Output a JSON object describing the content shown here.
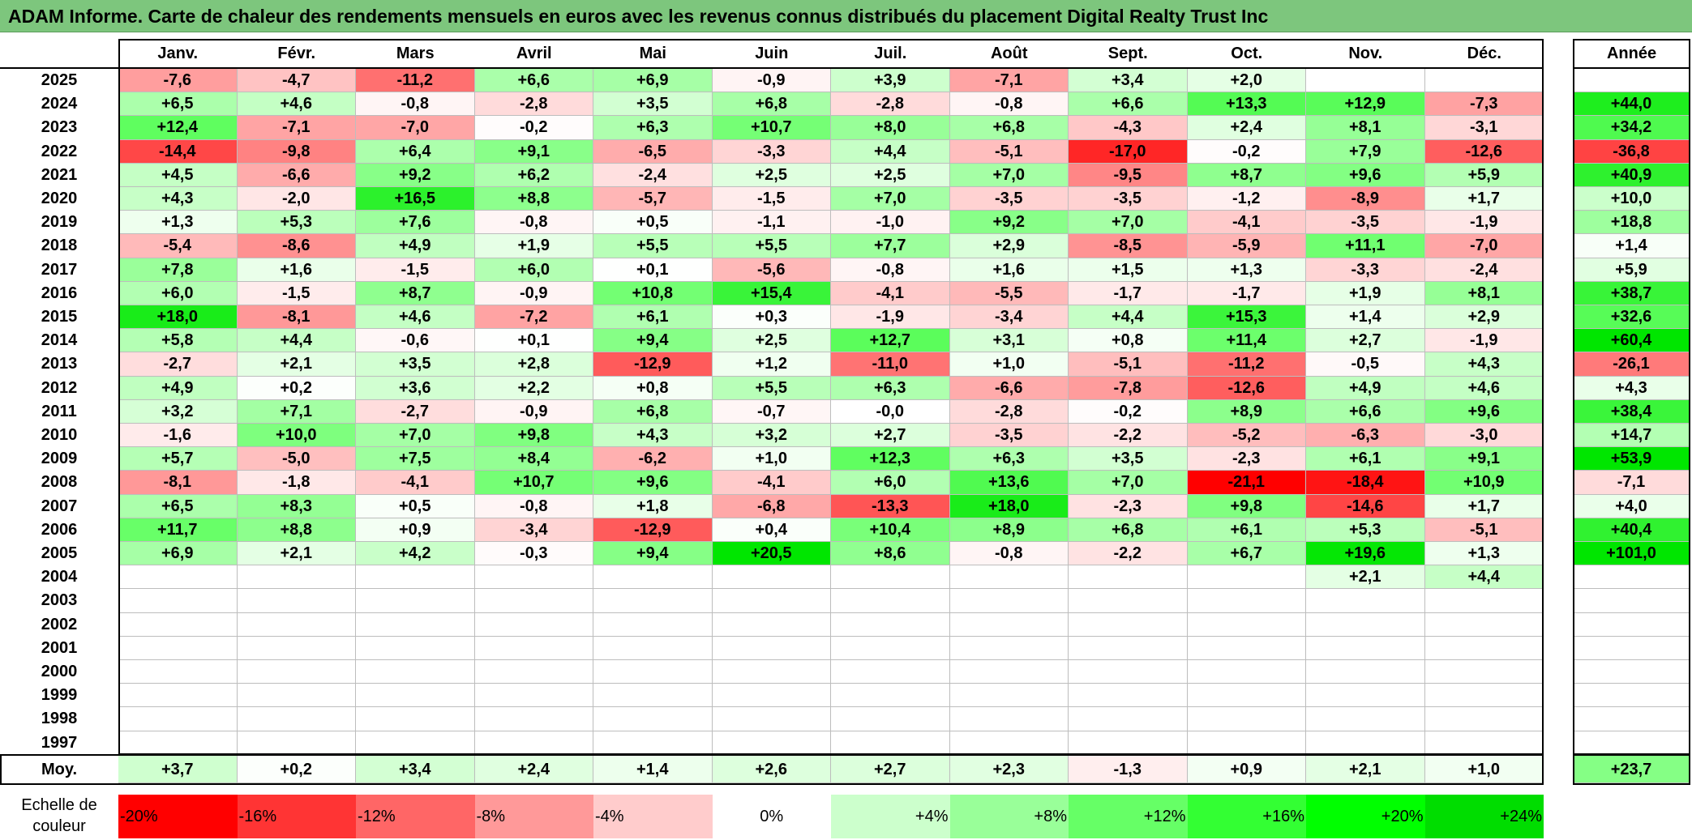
{
  "title": "ADAM Informe. Carte de chaleur des rendements mensuels en euros avec les revenus connus distribués du placement Digital Realty Trust Inc",
  "chart_data": {
    "type": "heatmap",
    "title": "ADAM Informe. Carte de chaleur des rendements mensuels en euros avec les revenus connus distribués du placement Digital Realty Trust Inc",
    "columns": [
      "Janv.",
      "Févr.",
      "Mars",
      "Avril",
      "Mai",
      "Juin",
      "Juil.",
      "Août",
      "Sept.",
      "Oct.",
      "Nov.",
      "Déc."
    ],
    "year_column_label": "Année",
    "average_row_label": "Moy.",
    "scale_title": "Echelle de couleur",
    "rows": [
      {
        "year": "2025",
        "values": [
          -7.6,
          -4.7,
          -11.2,
          6.6,
          6.9,
          -0.9,
          3.9,
          -7.1,
          3.4,
          2.0,
          null,
          null
        ],
        "total": null
      },
      {
        "year": "2024",
        "values": [
          6.5,
          4.6,
          -0.8,
          -2.8,
          3.5,
          6.8,
          -2.8,
          -0.8,
          6.6,
          13.3,
          12.9,
          -7.3
        ],
        "total": 44.0
      },
      {
        "year": "2023",
        "values": [
          12.4,
          -7.1,
          -7.0,
          -0.2,
          6.3,
          10.7,
          8.0,
          6.8,
          -4.3,
          2.4,
          8.1,
          -3.1
        ],
        "total": 34.2
      },
      {
        "year": "2022",
        "values": [
          -14.4,
          -9.8,
          6.4,
          9.1,
          -6.5,
          -3.3,
          4.4,
          -5.1,
          -17.0,
          -0.2,
          7.9,
          -12.6
        ],
        "total": -36.8
      },
      {
        "year": "2021",
        "values": [
          4.5,
          -6.6,
          9.2,
          6.2,
          -2.4,
          2.5,
          2.5,
          7.0,
          -9.5,
          8.7,
          9.6,
          5.9
        ],
        "total": 40.9
      },
      {
        "year": "2020",
        "values": [
          4.3,
          -2.0,
          16.5,
          8.8,
          -5.7,
          -1.5,
          7.0,
          -3.5,
          -3.5,
          -1.2,
          -8.9,
          1.7
        ],
        "total": 10.0
      },
      {
        "year": "2019",
        "values": [
          1.3,
          5.3,
          7.6,
          -0.8,
          0.5,
          -1.1,
          -1.0,
          9.2,
          7.0,
          -4.1,
          -3.5,
          -1.9
        ],
        "total": 18.8
      },
      {
        "year": "2018",
        "values": [
          -5.4,
          -8.6,
          4.9,
          1.9,
          5.5,
          5.5,
          7.7,
          2.9,
          -8.5,
          -5.9,
          11.1,
          -7.0
        ],
        "total": 1.4
      },
      {
        "year": "2017",
        "values": [
          7.8,
          1.6,
          -1.5,
          6.0,
          0.1,
          -5.6,
          -0.8,
          1.6,
          1.5,
          1.3,
          -3.3,
          -2.4
        ],
        "total": 5.9
      },
      {
        "year": "2016",
        "values": [
          6.0,
          -1.5,
          8.7,
          -0.9,
          10.8,
          15.4,
          -4.1,
          -5.5,
          -1.7,
          -1.7,
          1.9,
          8.1
        ],
        "total": 38.7
      },
      {
        "year": "2015",
        "values": [
          18.0,
          -8.1,
          4.6,
          -7.2,
          6.1,
          0.3,
          -1.9,
          -3.4,
          4.4,
          15.3,
          1.4,
          2.9
        ],
        "total": 32.6
      },
      {
        "year": "2014",
        "values": [
          5.8,
          4.4,
          -0.6,
          0.1,
          9.4,
          2.5,
          12.7,
          3.1,
          0.8,
          11.4,
          2.7,
          -1.9
        ],
        "total": 60.4
      },
      {
        "year": "2013",
        "values": [
          -2.7,
          2.1,
          3.5,
          2.8,
          -12.9,
          1.2,
          -11.0,
          1.0,
          -5.1,
          -11.2,
          -0.5,
          4.3
        ],
        "total": -26.1
      },
      {
        "year": "2012",
        "values": [
          4.9,
          0.2,
          3.6,
          2.2,
          0.8,
          5.5,
          6.3,
          -6.6,
          -7.8,
          -12.6,
          4.9,
          4.6
        ],
        "total": 4.3
      },
      {
        "year": "2011",
        "values": [
          3.2,
          7.1,
          -2.7,
          -0.9,
          6.8,
          -0.7,
          "-0,0",
          -2.8,
          -0.2,
          8.9,
          6.6,
          9.6
        ],
        "total": 38.4
      },
      {
        "year": "2010",
        "values": [
          -1.6,
          10.0,
          7.0,
          9.8,
          4.3,
          3.2,
          2.7,
          -3.5,
          -2.2,
          -5.2,
          -6.3,
          -3.0
        ],
        "total": 14.7
      },
      {
        "year": "2009",
        "values": [
          5.7,
          -5.0,
          7.5,
          8.4,
          -6.2,
          1.0,
          12.3,
          6.3,
          3.5,
          -2.3,
          6.1,
          9.1
        ],
        "total": 53.9
      },
      {
        "year": "2008",
        "values": [
          -8.1,
          -1.8,
          -4.1,
          10.7,
          9.6,
          -4.1,
          6.0,
          13.6,
          7.0,
          -21.1,
          -18.4,
          10.9
        ],
        "total": -7.1
      },
      {
        "year": "2007",
        "values": [
          6.5,
          8.3,
          0.5,
          -0.8,
          1.8,
          -6.8,
          -13.3,
          18.0,
          -2.3,
          9.8,
          -14.6,
          1.7
        ],
        "total": 4.0
      },
      {
        "year": "2006",
        "values": [
          11.7,
          8.8,
          0.9,
          -3.4,
          -12.9,
          0.4,
          10.4,
          8.9,
          6.8,
          6.1,
          5.3,
          -5.1
        ],
        "total": 40.4
      },
      {
        "year": "2005",
        "values": [
          6.9,
          2.1,
          4.2,
          -0.3,
          9.4,
          20.5,
          8.6,
          -0.8,
          -2.2,
          6.7,
          19.6,
          1.3
        ],
        "total": 101.0
      },
      {
        "year": "2004",
        "values": [
          null,
          null,
          null,
          null,
          null,
          null,
          null,
          null,
          null,
          null,
          2.1,
          4.4
        ],
        "total": null
      },
      {
        "year": "2003",
        "values": [
          null,
          null,
          null,
          null,
          null,
          null,
          null,
          null,
          null,
          null,
          null,
          null
        ],
        "total": null
      },
      {
        "year": "2002",
        "values": [
          null,
          null,
          null,
          null,
          null,
          null,
          null,
          null,
          null,
          null,
          null,
          null
        ],
        "total": null
      },
      {
        "year": "2001",
        "values": [
          null,
          null,
          null,
          null,
          null,
          null,
          null,
          null,
          null,
          null,
          null,
          null
        ],
        "total": null
      },
      {
        "year": "2000",
        "values": [
          null,
          null,
          null,
          null,
          null,
          null,
          null,
          null,
          null,
          null,
          null,
          null
        ],
        "total": null
      },
      {
        "year": "1999",
        "values": [
          null,
          null,
          null,
          null,
          null,
          null,
          null,
          null,
          null,
          null,
          null,
          null
        ],
        "total": null
      },
      {
        "year": "1998",
        "values": [
          null,
          null,
          null,
          null,
          null,
          null,
          null,
          null,
          null,
          null,
          null,
          null
        ],
        "total": null
      },
      {
        "year": "1997",
        "values": [
          null,
          null,
          null,
          null,
          null,
          null,
          null,
          null,
          null,
          null,
          null,
          null
        ],
        "total": null
      }
    ],
    "averages": [
      3.7,
      0.2,
      3.4,
      2.4,
      1.4,
      2.6,
      2.7,
      2.3,
      -1.3,
      0.9,
      2.1,
      1.0
    ],
    "average_total": 23.7,
    "scale": [
      {
        "label": "-20%",
        "value": -20,
        "color": "#ff0000",
        "align": "left"
      },
      {
        "label": "-16%",
        "value": -16,
        "color": "#ff3434",
        "align": "left"
      },
      {
        "label": "-12%",
        "value": -12,
        "color": "#ff6666",
        "align": "left"
      },
      {
        "label": "-8%",
        "value": -8,
        "color": "#ff9999",
        "align": "left"
      },
      {
        "label": "-4%",
        "value": -4,
        "color": "#ffcccc",
        "align": "left"
      },
      {
        "label": "0%",
        "value": 0,
        "color": "#ffffff",
        "align": "center"
      },
      {
        "label": "+4%",
        "value": 4,
        "color": "#ccffcc",
        "align": "right"
      },
      {
        "label": "+8%",
        "value": 8,
        "color": "#99ff99",
        "align": "right"
      },
      {
        "label": "+12%",
        "value": 12,
        "color": "#66ff66",
        "align": "right"
      },
      {
        "label": "+16%",
        "value": 16,
        "color": "#33ff33",
        "align": "right"
      },
      {
        "label": "+20%",
        "value": 20,
        "color": "#00ff00",
        "align": "right"
      },
      {
        "label": "+24%",
        "value": 24,
        "color": "#00dd00",
        "align": "right"
      }
    ],
    "colors": {
      "title_bar": "#7dc67d",
      "negative_max": "#ff0000",
      "positive_max": "#00e600",
      "neutral": "#ffffff"
    }
  }
}
